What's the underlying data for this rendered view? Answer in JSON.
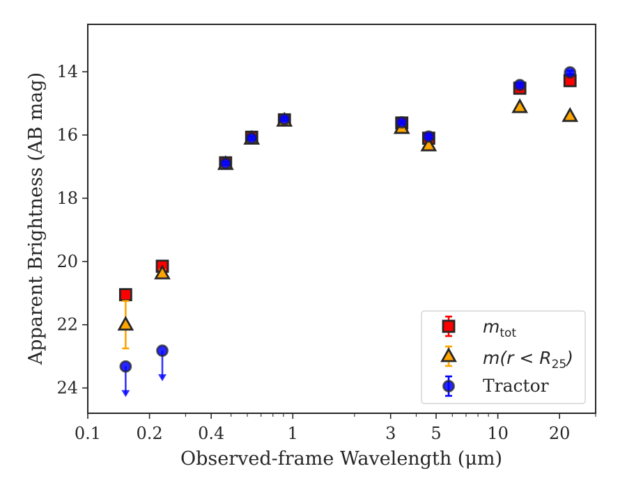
{
  "chart_data": {
    "type": "scatter",
    "xlabel": "Observed-frame Wavelength (μm)",
    "ylabel": "Apparent Brightness (AB mag)",
    "xscale": "log",
    "xlim": [
      0.1,
      30
    ],
    "ylim": [
      24.8,
      12.5
    ],
    "y_inverted": true,
    "xticks": [
      {
        "value": 0.1,
        "label": "0.1"
      },
      {
        "value": 0.2,
        "label": "0.2"
      },
      {
        "value": 0.4,
        "label": "0.4"
      },
      {
        "value": 1,
        "label": "1"
      },
      {
        "value": 3,
        "label": "3"
      },
      {
        "value": 5,
        "label": "5"
      },
      {
        "value": 10,
        "label": "10"
      },
      {
        "value": 20,
        "label": "20"
      }
    ],
    "yticks": [
      {
        "value": 14,
        "label": "14"
      },
      {
        "value": 16,
        "label": "16"
      },
      {
        "value": 18,
        "label": "18"
      },
      {
        "value": 20,
        "label": "20"
      },
      {
        "value": 22,
        "label": "22"
      },
      {
        "value": 24,
        "label": "24"
      }
    ],
    "grid": false,
    "legend_position": "lower-right",
    "series": [
      {
        "name": "m_tot",
        "legend_main": "m",
        "legend_sub": "tot",
        "marker": "square",
        "color": "#ff0000",
        "edge_color": "#262626",
        "points": [
          {
            "x": 0.153,
            "y": 21.05,
            "err": 0.1
          },
          {
            "x": 0.231,
            "y": 20.15,
            "err": 0.1
          },
          {
            "x": 0.47,
            "y": 16.88,
            "err": 0.08
          },
          {
            "x": 0.63,
            "y": 16.07,
            "err": 0.05
          },
          {
            "x": 0.91,
            "y": 15.52,
            "err": 0.05
          },
          {
            "x": 3.4,
            "y": 15.62,
            "err": 0.05
          },
          {
            "x": 4.6,
            "y": 16.1,
            "err": 0.05
          },
          {
            "x": 12.8,
            "y": 14.52,
            "err": 0.12
          },
          {
            "x": 22.5,
            "y": 14.28,
            "err": 0.1
          }
        ]
      },
      {
        "name": "m(r < R25)",
        "legend_main": "m(r < R",
        "legend_sub": "25",
        "legend_end": ")",
        "marker": "triangle",
        "color": "#ffa500",
        "edge_color": "#262626",
        "points": [
          {
            "x": 0.153,
            "y": 22.0,
            "err": 0.75
          },
          {
            "x": 0.231,
            "y": 20.38,
            "err": 0.12
          },
          {
            "x": 0.47,
            "y": 16.92,
            "err": 0.05
          },
          {
            "x": 0.63,
            "y": 16.12,
            "err": 0.05
          },
          {
            "x": 0.91,
            "y": 15.55,
            "err": 0.05
          },
          {
            "x": 3.4,
            "y": 15.78,
            "err": 0.05
          },
          {
            "x": 4.6,
            "y": 16.33,
            "err": 0.05
          },
          {
            "x": 12.8,
            "y": 15.12,
            "err": 0.05
          },
          {
            "x": 22.5,
            "y": 15.4,
            "err": 0.05
          }
        ]
      },
      {
        "name": "Tractor",
        "legend_main": "Tractor",
        "marker": "circle",
        "color": "#0000ff",
        "edge_color": "#262626",
        "points": [
          {
            "x": 0.153,
            "y": 23.32,
            "upper_limit": true
          },
          {
            "x": 0.231,
            "y": 22.82,
            "upper_limit": true
          },
          {
            "x": 0.47,
            "y": 16.9,
            "err": 0.05
          },
          {
            "x": 0.63,
            "y": 16.1,
            "err": 0.05
          },
          {
            "x": 0.91,
            "y": 15.5,
            "err": 0.05
          },
          {
            "x": 3.4,
            "y": 15.6,
            "err": 0.05
          },
          {
            "x": 4.6,
            "y": 16.05,
            "err": 0.05
          },
          {
            "x": 12.8,
            "y": 14.42,
            "err": 0.05
          },
          {
            "x": 22.5,
            "y": 14.02,
            "err": 0.05
          }
        ]
      }
    ]
  }
}
